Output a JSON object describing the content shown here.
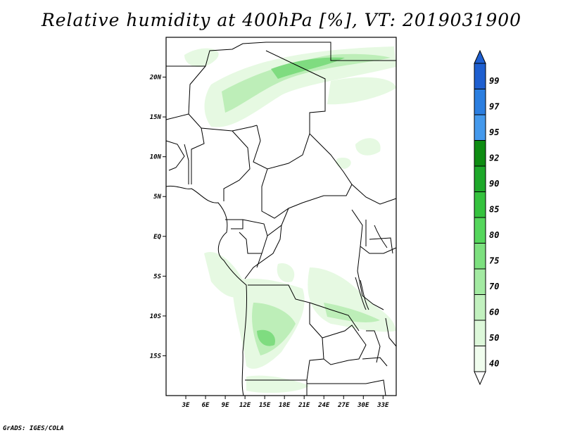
{
  "title": "Relative humidity at 400hPa [%], VT: 2019031900",
  "footer": "GrADS: IGES/COLA",
  "map": {
    "lon_range": [
      0,
      35
    ],
    "lat_range": [
      -20,
      25
    ],
    "lat_ticks": [
      {
        "value": 20,
        "label": "20N"
      },
      {
        "value": 15,
        "label": "15N"
      },
      {
        "value": 10,
        "label": "10N"
      },
      {
        "value": 5,
        "label": "5N"
      },
      {
        "value": 0,
        "label": "EQ"
      },
      {
        "value": -5,
        "label": "5S"
      },
      {
        "value": -10,
        "label": "10S"
      },
      {
        "value": -15,
        "label": "15S"
      }
    ],
    "lon_ticks": [
      {
        "value": 3,
        "label": "3E"
      },
      {
        "value": 6,
        "label": "6E"
      },
      {
        "value": 9,
        "label": "9E"
      },
      {
        "value": 12,
        "label": "12E"
      },
      {
        "value": 15,
        "label": "15E"
      },
      {
        "value": 18,
        "label": "18E"
      },
      {
        "value": 21,
        "label": "21E"
      },
      {
        "value": 24,
        "label": "24E"
      },
      {
        "value": 27,
        "label": "27E"
      },
      {
        "value": 30,
        "label": "30E"
      },
      {
        "value": 33,
        "label": "33E"
      }
    ]
  },
  "colorbar": {
    "labels": [
      "99",
      "97",
      "95",
      "92",
      "90",
      "85",
      "80",
      "75",
      "70",
      "60",
      "50",
      "40"
    ],
    "colors": [
      "#1e5fd0",
      "#2b7ee0",
      "#4499ec",
      "#0e8c12",
      "#1ea82a",
      "#35c23e",
      "#55d65c",
      "#7de07f",
      "#a3eaa2",
      "#c2f1bf",
      "#ddf8da",
      "#f0fdee"
    ]
  },
  "colors": {
    "land_outline": "#000000",
    "humidity_light": "#e4f8e0",
    "humidity_mid": "#b4eab0",
    "humidity_dark": "#5ccf62"
  }
}
